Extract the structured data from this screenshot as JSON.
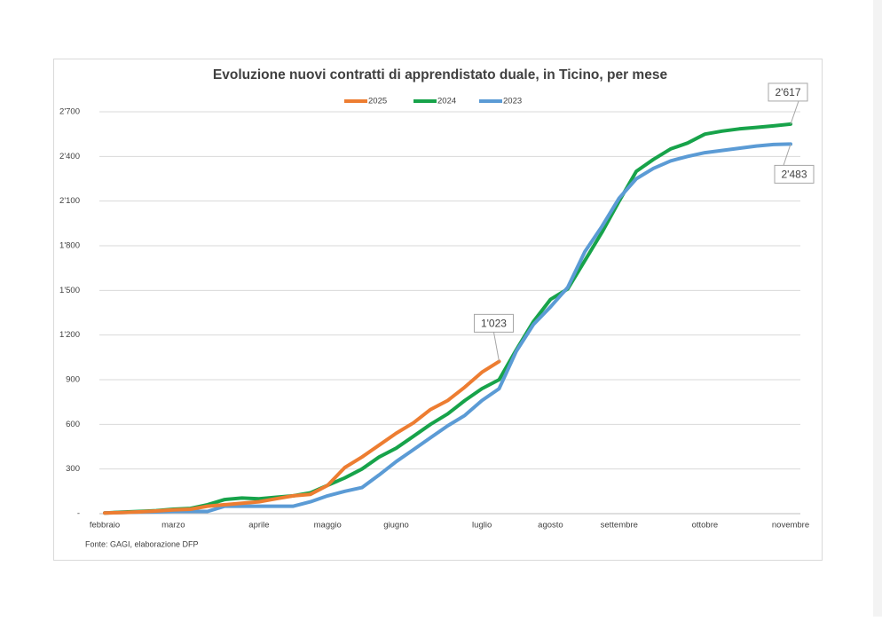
{
  "chart_data": {
    "type": "line",
    "title": "Evoluzione nuovi contratti di apprendistato duale, in Ticino, per mese",
    "source": "Fonte: GAGI, elaborazione DFP",
    "categories": [
      "febbraio",
      null,
      null,
      null,
      "marzo",
      null,
      null,
      null,
      null,
      "aprile",
      null,
      null,
      null,
      "maggio",
      null,
      null,
      null,
      "giugno",
      null,
      null,
      null,
      null,
      "luglio",
      null,
      null,
      null,
      "agosto",
      null,
      null,
      null,
      "settembre",
      null,
      null,
      null,
      null,
      "ottobre",
      null,
      null,
      null,
      null,
      "novembre"
    ],
    "series": [
      {
        "name": "2025",
        "color": "#ed7d31",
        "values": [
          5,
          8,
          12,
          18,
          25,
          30,
          50,
          60,
          70,
          80,
          100,
          120,
          130,
          190,
          310,
          380,
          460,
          540,
          610,
          700,
          760,
          850,
          950,
          1023,
          null,
          null,
          null,
          null,
          null,
          null,
          null,
          null,
          null,
          null,
          null,
          null,
          null,
          null,
          null,
          null,
          null
        ],
        "value_labels": [
          null,
          null,
          null,
          null,
          null,
          null,
          null,
          null,
          null,
          null,
          null,
          null,
          null,
          null,
          null,
          null,
          null,
          null,
          null,
          null,
          null,
          null,
          null,
          "1'023",
          null,
          null,
          null,
          null,
          null,
          null,
          null,
          null,
          null,
          null,
          null,
          null,
          null,
          null,
          null,
          null,
          null
        ]
      },
      {
        "name": "2024",
        "color": "#17a34a",
        "values": [
          5,
          10,
          15,
          20,
          30,
          35,
          60,
          95,
          105,
          100,
          110,
          120,
          140,
          190,
          240,
          300,
          380,
          440,
          520,
          600,
          670,
          760,
          840,
          900,
          1100,
          1290,
          1440,
          1510,
          1700,
          1890,
          2100,
          2300,
          2380,
          2450,
          2490,
          2550,
          2570,
          2585,
          2595,
          2605,
          2617
        ],
        "value_labels": [
          null,
          null,
          null,
          null,
          null,
          null,
          null,
          null,
          null,
          null,
          null,
          null,
          null,
          null,
          null,
          null,
          null,
          null,
          null,
          null,
          null,
          null,
          null,
          null,
          null,
          null,
          null,
          null,
          null,
          null,
          null,
          null,
          null,
          null,
          null,
          null,
          null,
          null,
          null,
          null,
          "2'617"
        ]
      },
      {
        "name": "2023",
        "color": "#5b9bd5",
        "values": [
          5,
          8,
          10,
          12,
          15,
          15,
          15,
          50,
          50,
          50,
          50,
          50,
          80,
          120,
          150,
          175,
          260,
          350,
          430,
          510,
          590,
          660,
          760,
          840,
          1090,
          1270,
          1390,
          1520,
          1760,
          1930,
          2120,
          2250,
          2320,
          2370,
          2400,
          2425,
          2440,
          2455,
          2470,
          2480,
          2483
        ],
        "value_labels": [
          null,
          null,
          null,
          null,
          null,
          null,
          null,
          null,
          null,
          null,
          null,
          null,
          null,
          null,
          null,
          null,
          null,
          null,
          null,
          null,
          null,
          null,
          null,
          null,
          null,
          null,
          null,
          null,
          null,
          null,
          null,
          null,
          null,
          null,
          null,
          null,
          null,
          null,
          null,
          null,
          "2'483"
        ]
      }
    ],
    "ylim": [
      0,
      2700
    ],
    "yticks": [
      {
        "value": 0,
        "label": "-"
      },
      300,
      600,
      900,
      {
        "value": 1200,
        "label": "1'200"
      },
      {
        "value": 1500,
        "label": "1'500"
      },
      {
        "value": 1800,
        "label": "1'800"
      },
      {
        "value": 2100,
        "label": "2'100"
      },
      {
        "value": 2400,
        "label": "2'400"
      },
      {
        "value": 2700,
        "label": "2'700"
      }
    ],
    "grid": true
  }
}
